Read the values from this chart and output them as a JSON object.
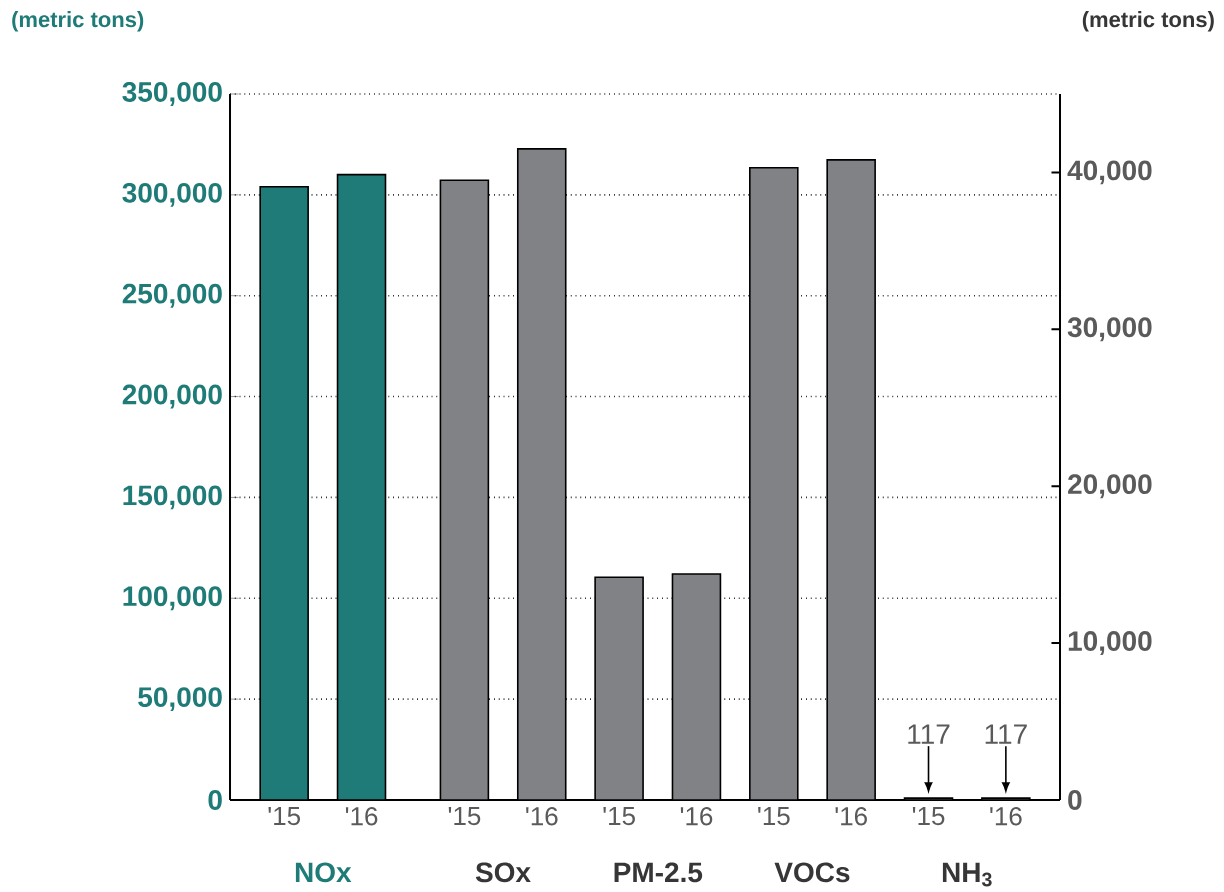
{
  "chart_data": {
    "type": "bar",
    "ylabel": "(metric tons)",
    "y2label": "(metric tons)",
    "categories": [
      "'15",
      "'16",
      "'15",
      "'16",
      "'15",
      "'16",
      "'15",
      "'16",
      "'15",
      "'16"
    ],
    "series": [
      {
        "color": "#1f7b77",
        "values": [
          304000,
          310000,
          null,
          null,
          null,
          null,
          null,
          null,
          null,
          null
        ]
      },
      {
        "color": "#808285",
        "axis": "y2",
        "values": [
          null,
          null,
          39500,
          41500,
          14200,
          14400,
          40300,
          40800,
          117,
          117
        ],
        "value_labels": [
          null,
          null,
          null,
          null,
          null,
          null,
          null,
          null,
          "117",
          "117"
        ]
      }
    ],
    "ylim": [
      0,
      350000
    ],
    "yticks": [
      {
        "value": 0,
        "label": "0"
      },
      {
        "value": 50000,
        "label": "50,000"
      },
      {
        "value": 100000,
        "label": "100,000"
      },
      {
        "value": 150000,
        "label": "150,000"
      },
      {
        "value": 200000,
        "label": "200,000"
      },
      {
        "value": 250000,
        "label": "250,000"
      },
      {
        "value": 300000,
        "label": "300,000"
      },
      {
        "value": 350000,
        "label": "350,000"
      }
    ],
    "y2lim": [
      0,
      45000
    ],
    "y2ticks": [
      {
        "value": 0,
        "label": "0"
      },
      {
        "value": 10000,
        "label": "10,000"
      },
      {
        "value": 20000,
        "label": "20,000"
      },
      {
        "value": 30000,
        "label": "30,000"
      },
      {
        "value": 40000,
        "label": "40,000"
      }
    ],
    "grid": "y",
    "annotations": [
      "NOx",
      "SOx",
      "PM-2.5",
      "VOCs",
      "NH$_{3}$"
    ]
  }
}
